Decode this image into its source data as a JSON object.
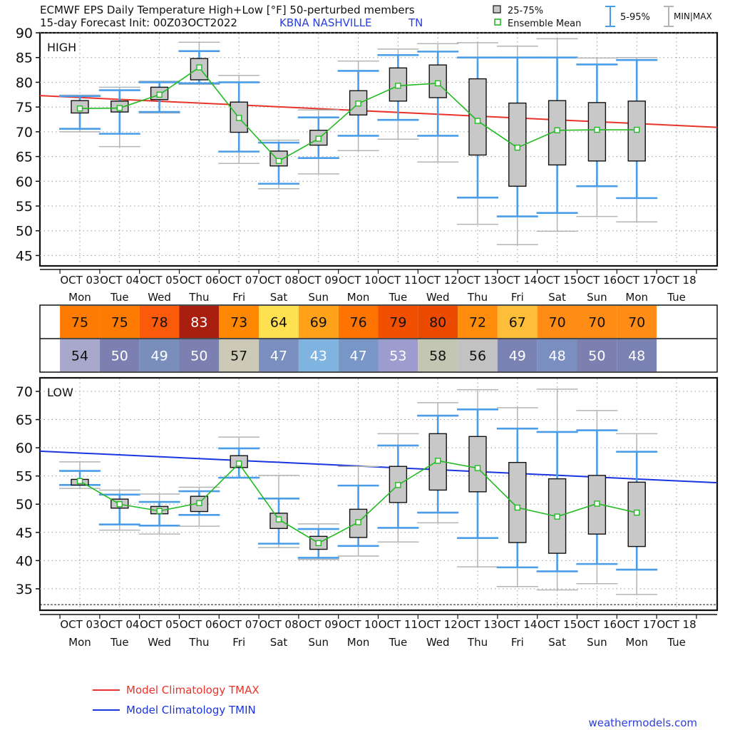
{
  "header": {
    "title": "ECMWF EPS Daily Temperature High+Low [°F]  50-perturbed members",
    "subtitle": "15-day Forecast Init: 00Z03OCT2022",
    "station": "KBNA  NASHVILLE",
    "state": "TN"
  },
  "legend": {
    "box": "25-75%",
    "mean": "Ensemble Mean",
    "range595": "5-95%",
    "minmax": "MIN|MAX",
    "tmax": "Model Climatology TMAX",
    "tmin": "Model Climatology TMIN"
  },
  "credit": "weathermodels.com",
  "colors": {
    "box_fill": "#c8c8c8",
    "mean_line": "#22bb22",
    "range595": "#4a9de8",
    "minmax": "#b4b4b4",
    "clim_tmax": "#e8342a",
    "clim_tmin": "#1a35e0"
  },
  "chart_data": [
    {
      "type": "box",
      "title": "HIGH",
      "ylim": [
        45,
        90
      ],
      "yticks": [
        45,
        50,
        55,
        60,
        65,
        70,
        75,
        80,
        85,
        90
      ],
      "grid": true,
      "dates": [
        "OCT 03",
        "OCT 04",
        "OCT 05",
        "OCT 06",
        "OCT 07",
        "OCT 08",
        "OCT 09",
        "OCT 10",
        "OCT 11",
        "OCT 12",
        "OCT 13",
        "OCT 14",
        "OCT 15",
        "OCT 16",
        "OCT 17",
        "OCT 18"
      ],
      "weekdays": [
        "Mon",
        "Tue",
        "Wed",
        "Thu",
        "Fri",
        "Sat",
        "Sun",
        "Mon",
        "Tue",
        "Wed",
        "Thu",
        "Fri",
        "Sat",
        "Sun",
        "Mon",
        "Tue"
      ],
      "series": {
        "min": [
          70.0,
          67.0,
          73.8,
          79.6,
          63.6,
          58.5,
          61.5,
          66.2,
          68.5,
          63.9,
          51.3,
          47.2,
          49.9,
          52.9,
          51.8
        ],
        "p5": [
          70.6,
          69.6,
          74.0,
          79.8,
          66.0,
          59.5,
          64.7,
          69.2,
          72.4,
          69.2,
          56.7,
          52.9,
          53.6,
          59.0,
          56.6
        ],
        "p25": [
          73.8,
          74.0,
          76.5,
          80.5,
          69.9,
          63.1,
          67.3,
          73.4,
          76.2,
          76.9,
          65.3,
          59.0,
          63.3,
          64.1,
          64.1
        ],
        "mean": [
          74.7,
          74.8,
          77.5,
          83.0,
          72.8,
          64.1,
          68.6,
          75.7,
          79.3,
          79.8,
          72.2,
          66.8,
          70.3,
          70.4,
          70.4
        ],
        "p75": [
          76.3,
          76.2,
          79.0,
          84.8,
          76.0,
          66.1,
          70.3,
          78.3,
          82.9,
          83.5,
          80.7,
          75.8,
          76.3,
          75.9,
          76.2
        ],
        "p95": [
          77.2,
          78.4,
          80.0,
          86.3,
          80.0,
          67.8,
          72.9,
          82.3,
          85.5,
          86.2,
          85.0,
          85.0,
          85.0,
          83.6,
          84.5
        ],
        "max": [
          77.4,
          79.0,
          80.2,
          88.1,
          81.4,
          68.3,
          74.4,
          84.3,
          86.7,
          87.8,
          88.0,
          87.3,
          88.8,
          84.9,
          85.0
        ]
      },
      "climatology": {
        "name": "Model Climatology TMAX",
        "start": 77.3,
        "end": 70.9
      },
      "table": {
        "values": [
          75,
          75,
          78,
          83,
          73,
          64,
          69,
          76,
          79,
          80,
          72,
          67,
          70,
          70,
          70
        ],
        "colors": [
          "#ff7a00",
          "#ff7a00",
          "#fa5a0a",
          "#a81f10",
          "#ff8800",
          "#ffe050",
          "#ffa21a",
          "#ff7400",
          "#f25000",
          "#eb4a00",
          "#ff8c0a",
          "#ffbe3a",
          "#ff8c14",
          "#ff8c14",
          "#ff8c14"
        ]
      }
    },
    {
      "type": "box",
      "title": "LOW",
      "ylim": [
        32,
        72
      ],
      "yticks": [
        35,
        40,
        45,
        50,
        55,
        60,
        65,
        70
      ],
      "grid": true,
      "dates": [
        "OCT 03",
        "OCT 04",
        "OCT 05",
        "OCT 06",
        "OCT 07",
        "OCT 08",
        "OCT 09",
        "OCT 10",
        "OCT 11",
        "OCT 12",
        "OCT 13",
        "OCT 14",
        "OCT 15",
        "OCT 16",
        "OCT 17",
        "OCT 18"
      ],
      "weekdays": [
        "Mon",
        "Tue",
        "Wed",
        "Thu",
        "Fri",
        "Sat",
        "Sun",
        "Mon",
        "Tue",
        "Wed",
        "Thu",
        "Fri",
        "Sat",
        "Sun",
        "Mon",
        "Tue"
      ],
      "series": {
        "min": [
          52.8,
          45.4,
          44.7,
          46.1,
          54.7,
          42.3,
          40.2,
          40.8,
          43.3,
          46.7,
          38.9,
          35.4,
          34.8,
          35.9,
          34.0
        ],
        "p5": [
          53.4,
          46.4,
          46.2,
          48.1,
          54.7,
          43.0,
          40.5,
          42.6,
          45.8,
          48.5,
          44.0,
          38.8,
          38.1,
          39.4,
          38.4
        ],
        "p25": [
          53.4,
          49.3,
          48.3,
          48.7,
          56.5,
          45.7,
          42.0,
          44.1,
          50.3,
          52.5,
          52.2,
          43.2,
          41.3,
          44.7,
          42.5
        ],
        "mean": [
          54.1,
          50.0,
          48.8,
          50.2,
          57.2,
          47.3,
          43.1,
          46.8,
          53.4,
          57.7,
          56.4,
          49.4,
          47.8,
          50.1,
          48.5
        ],
        "p75": [
          54.4,
          50.9,
          49.6,
          51.4,
          58.6,
          48.4,
          44.3,
          49.1,
          56.7,
          62.5,
          62.0,
          57.4,
          54.5,
          55.1,
          53.9
        ],
        "p95": [
          55.9,
          51.7,
          50.4,
          52.3,
          59.9,
          51.0,
          45.6,
          53.3,
          60.4,
          65.7,
          66.8,
          63.4,
          62.8,
          63.1,
          59.3
        ],
        "max": [
          57.5,
          52.5,
          51.8,
          53.0,
          61.9,
          55.1,
          46.5,
          56.7,
          62.5,
          68.0,
          70.3,
          67.1,
          70.4,
          66.6,
          62.5
        ]
      },
      "climatology": {
        "name": "Model Climatology TMIN",
        "start": 59.4,
        "end": 53.8
      },
      "table": {
        "values": [
          54,
          50,
          49,
          50,
          57,
          47,
          43,
          47,
          53,
          58,
          56,
          49,
          48,
          50,
          48
        ],
        "colors": [
          "#a8a8cc",
          "#7c80b0",
          "#7a8ebc",
          "#7c80b0",
          "#cccab6",
          "#7a8fbf",
          "#80b4e0",
          "#7896c6",
          "#9c9ccf",
          "#c4c6b4",
          "#c2c2c2",
          "#7a82b4",
          "#7a8fbf",
          "#7c80b0",
          "#7a82b4"
        ]
      }
    }
  ]
}
